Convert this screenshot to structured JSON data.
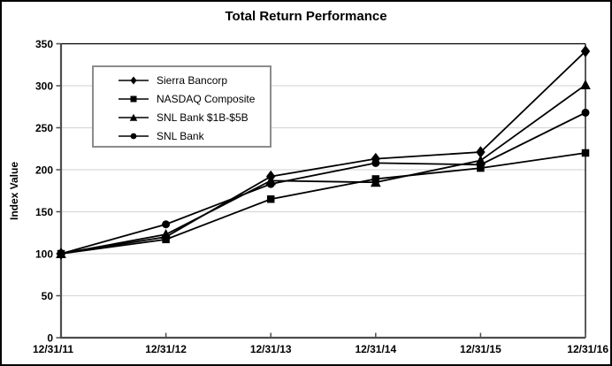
{
  "title": "Total Return Performance",
  "chart_data": {
    "type": "line",
    "title": "Total Return Performance",
    "xlabel": "",
    "ylabel": "Index Value",
    "x_labels": [
      "12/31/11",
      "12/31/12",
      "12/31/13",
      "12/31/14",
      "12/31/15",
      "12/31/16"
    ],
    "y_tick_labels": [
      "0",
      "50",
      "100",
      "150",
      "200",
      "250",
      "300",
      "350"
    ],
    "ylim": [
      0,
      350
    ],
    "ytick_step": 50,
    "grid": true,
    "gridline_color": "#d9d9d9",
    "line_color": "#000000",
    "axis_color": "#4d4d4d",
    "legend_position": "upper-left",
    "series": [
      {
        "name": "Sierra Bancorp",
        "marker": "diamond",
        "values": [
          100,
          120,
          192,
          213,
          221,
          341
        ]
      },
      {
        "name": "NASDAQ Composite",
        "marker": "square",
        "values": [
          100,
          117,
          165,
          189,
          202,
          220
        ]
      },
      {
        "name": "SNL Bank $1B-$5B",
        "marker": "triangle",
        "values": [
          100,
          123,
          187,
          185,
          211,
          301
        ]
      },
      {
        "name": "SNL Bank",
        "marker": "circle",
        "values": [
          100,
          135,
          183,
          208,
          206,
          268
        ]
      }
    ]
  }
}
